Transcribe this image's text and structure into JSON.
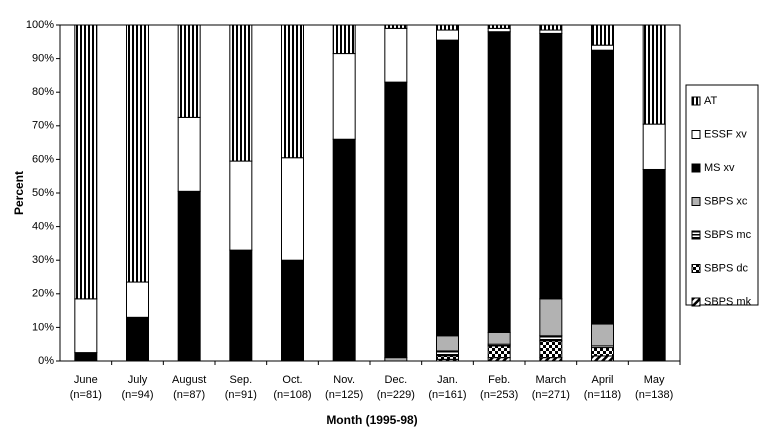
{
  "chart_data": {
    "type": "stacked-bar",
    "y_label": "Percent",
    "x_label": "Month (1995-98)",
    "categories": [
      "June",
      "July",
      "August",
      "Sep.",
      "Oct.",
      "Nov.",
      "Dec.",
      "Jan.",
      "Feb.",
      "March",
      "April",
      "May"
    ],
    "sample_sizes": [
      "(n=81)",
      "(n=94)",
      "(n=87)",
      "(n=91)",
      "(n=108)",
      "(n=125)",
      "(n=229)",
      "(n=161)",
      "(n=253)",
      "(n=271)",
      "(n=118)",
      "(n=138)"
    ],
    "ylim": [
      0,
      100
    ],
    "yticks": [
      {
        "value": 0,
        "label": "0%"
      },
      {
        "value": 10,
        "label": "10%"
      },
      {
        "value": 20,
        "label": "20%"
      },
      {
        "value": 30,
        "label": "30%"
      },
      {
        "value": 40,
        "label": "40%"
      },
      {
        "value": 50,
        "label": "50%"
      },
      {
        "value": 60,
        "label": "60%"
      },
      {
        "value": 70,
        "label": "70%"
      },
      {
        "value": 80,
        "label": "80%"
      },
      {
        "value": 90,
        "label": "90%"
      },
      {
        "value": 100,
        "label": "100%"
      }
    ],
    "grid": false,
    "legend": "right",
    "series": [
      {
        "name": "SBPS mk",
        "color": "#000000",
        "pattern": "diagonal",
        "values": [
          0,
          0,
          0,
          0,
          0,
          0,
          0,
          0.5,
          1,
          1,
          1.5,
          0
        ]
      },
      {
        "name": "SBPS dc",
        "color": "#000000",
        "pattern": "checker",
        "values": [
          0,
          0,
          0,
          0,
          0,
          0,
          0,
          1,
          3.5,
          5,
          2.5,
          0
        ]
      },
      {
        "name": "SBPS mc",
        "color": "#000000",
        "pattern": "horizontal-stripes",
        "values": [
          0,
          0,
          0,
          0,
          0,
          0,
          0,
          1.5,
          0.5,
          1.5,
          0.5,
          0
        ]
      },
      {
        "name": "SBPS xc",
        "color": "#b2b2b2",
        "pattern": "solid",
        "values": [
          0,
          0,
          0,
          0,
          0,
          0,
          1,
          4.5,
          3.5,
          11,
          6.5,
          0
        ]
      },
      {
        "name": "MS xv",
        "color": "#000000",
        "pattern": "solid",
        "values": [
          2.5,
          13,
          50.5,
          33,
          30,
          66,
          82,
          88,
          89.5,
          79,
          81.5,
          57
        ]
      },
      {
        "name": "ESSF xv",
        "color": "#ffffff",
        "pattern": "solid",
        "values": [
          16,
          10.5,
          22,
          26.5,
          30.5,
          25.5,
          16,
          3,
          1,
          1,
          1.5,
          13.5
        ]
      },
      {
        "name": "AT",
        "color": "#000000",
        "pattern": "vertical-stripes",
        "values": [
          81.5,
          76.5,
          27.5,
          40.5,
          39.5,
          8.5,
          1,
          1.5,
          1,
          1.5,
          6,
          29.5
        ]
      }
    ]
  }
}
